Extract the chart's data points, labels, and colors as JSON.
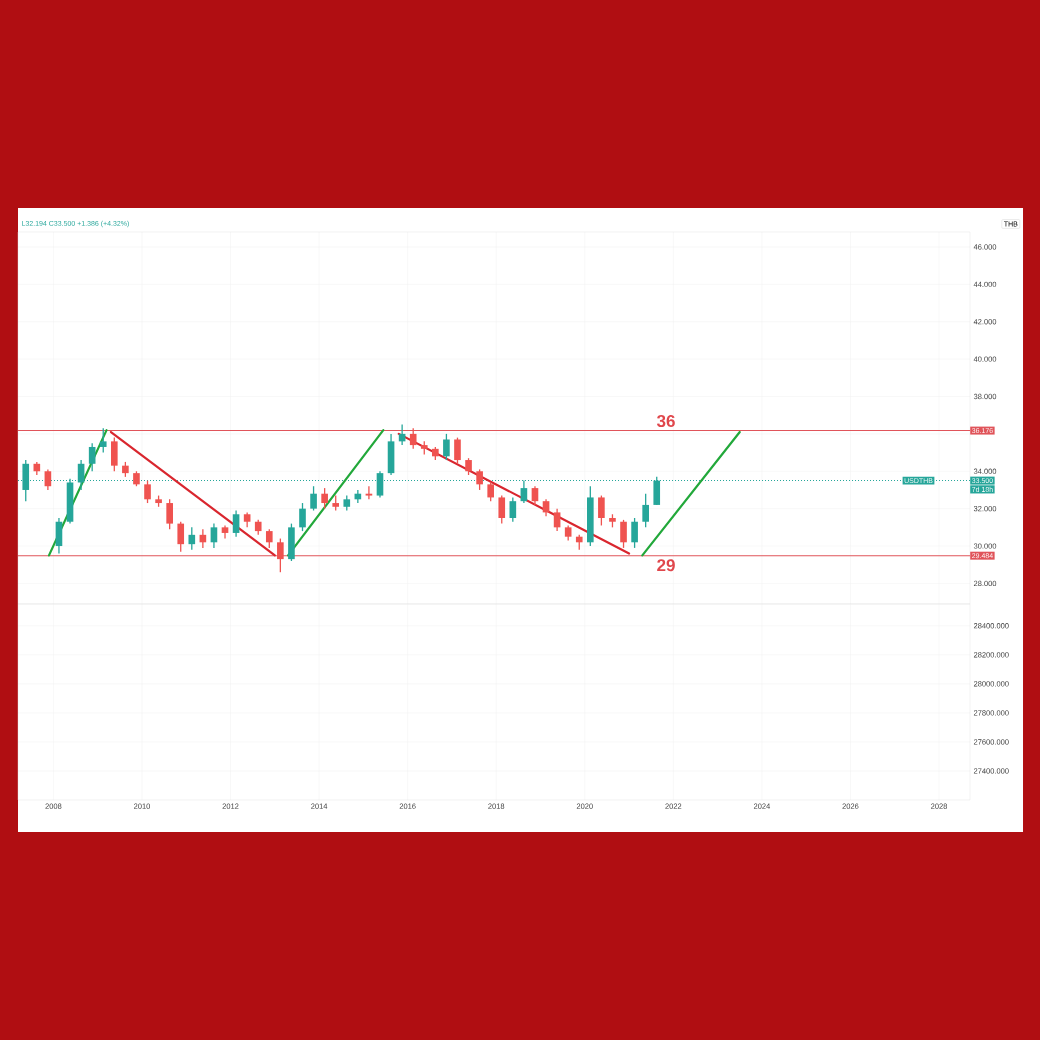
{
  "chart_data": [
    {
      "type": "candlestick",
      "x": [
        2007.375,
        2007.625,
        2007.875,
        2008.125,
        2008.375,
        2008.625,
        2008.875,
        2009.125,
        2009.375,
        2009.625,
        2009.875,
        2010.125,
        2010.375,
        2010.625,
        2010.875,
        2011.125,
        2011.375,
        2011.625,
        2011.875,
        2012.125,
        2012.375,
        2012.625,
        2012.875,
        2013.125,
        2013.375,
        2013.625,
        2013.875,
        2014.125,
        2014.375,
        2014.625,
        2014.875,
        2015.125,
        2015.375,
        2015.625,
        2015.875,
        2016.125,
        2016.375,
        2016.625,
        2016.875,
        2017.125,
        2017.375,
        2017.625,
        2017.875,
        2018.125,
        2018.375,
        2018.625,
        2018.875,
        2019.125,
        2019.375,
        2019.625,
        2019.875,
        2020.125,
        2020.375,
        2020.625,
        2020.875,
        2021.125,
        2021.375,
        2021.625
      ],
      "ohlc": [
        [
          33.0,
          34.6,
          32.4,
          34.4
        ],
        [
          34.4,
          34.5,
          33.8,
          34.0
        ],
        [
          34.0,
          34.1,
          33.0,
          33.2
        ],
        [
          30.0,
          31.5,
          29.6,
          31.3
        ],
        [
          31.3,
          33.6,
          31.2,
          33.4
        ],
        [
          33.4,
          34.6,
          33.0,
          34.4
        ],
        [
          34.4,
          35.5,
          34.0,
          35.3
        ],
        [
          35.3,
          36.3,
          35.0,
          35.6
        ],
        [
          35.6,
          35.8,
          34.0,
          34.3
        ],
        [
          34.3,
          34.5,
          33.7,
          33.9
        ],
        [
          33.9,
          34.0,
          33.2,
          33.3
        ],
        [
          33.3,
          33.5,
          32.3,
          32.5
        ],
        [
          32.5,
          32.7,
          32.1,
          32.3
        ],
        [
          32.3,
          32.5,
          30.9,
          31.2
        ],
        [
          31.2,
          31.3,
          29.7,
          30.1
        ],
        [
          30.1,
          31.0,
          29.8,
          30.6
        ],
        [
          30.6,
          30.9,
          29.9,
          30.2
        ],
        [
          30.2,
          31.2,
          29.9,
          31.0
        ],
        [
          31.0,
          31.1,
          30.4,
          30.7
        ],
        [
          30.7,
          31.9,
          30.5,
          31.7
        ],
        [
          31.7,
          31.8,
          31.0,
          31.3
        ],
        [
          31.3,
          31.4,
          30.6,
          30.8
        ],
        [
          30.8,
          30.9,
          29.9,
          30.2
        ],
        [
          30.2,
          30.4,
          28.6,
          29.3
        ],
        [
          29.3,
          31.2,
          29.2,
          31.0
        ],
        [
          31.0,
          32.3,
          30.8,
          32.0
        ],
        [
          32.0,
          33.2,
          31.9,
          32.8
        ],
        [
          32.8,
          33.1,
          32.0,
          32.3
        ],
        [
          32.3,
          32.7,
          31.9,
          32.1
        ],
        [
          32.1,
          32.7,
          31.9,
          32.5
        ],
        [
          32.5,
          33.0,
          32.3,
          32.8
        ],
        [
          32.8,
          33.2,
          32.5,
          32.7
        ],
        [
          32.7,
          34.0,
          32.6,
          33.9
        ],
        [
          33.9,
          36.0,
          33.8,
          35.6
        ],
        [
          35.6,
          36.5,
          35.4,
          36.0
        ],
        [
          36.0,
          36.3,
          35.2,
          35.4
        ],
        [
          35.4,
          35.6,
          34.9,
          35.2
        ],
        [
          35.2,
          35.3,
          34.6,
          34.8
        ],
        [
          34.8,
          36.0,
          34.6,
          35.7
        ],
        [
          35.7,
          35.8,
          34.4,
          34.6
        ],
        [
          34.6,
          34.7,
          33.8,
          34.0
        ],
        [
          34.0,
          34.1,
          33.0,
          33.3
        ],
        [
          33.3,
          33.4,
          32.4,
          32.6
        ],
        [
          32.6,
          32.7,
          31.2,
          31.5
        ],
        [
          31.5,
          32.6,
          31.3,
          32.4
        ],
        [
          32.4,
          33.5,
          32.3,
          33.1
        ],
        [
          33.1,
          33.2,
          32.2,
          32.4
        ],
        [
          32.4,
          32.5,
          31.6,
          31.8
        ],
        [
          31.8,
          32.0,
          30.8,
          31.0
        ],
        [
          31.0,
          31.1,
          30.3,
          30.5
        ],
        [
          30.5,
          30.6,
          29.8,
          30.2
        ],
        [
          30.2,
          33.2,
          30.0,
          32.6
        ],
        [
          32.6,
          32.7,
          31.1,
          31.5
        ],
        [
          31.5,
          31.7,
          31.0,
          31.3
        ],
        [
          31.3,
          31.4,
          29.9,
          30.2
        ],
        [
          30.2,
          31.5,
          29.9,
          31.3
        ],
        [
          31.3,
          32.8,
          31.0,
          32.2
        ],
        [
          32.2,
          33.7,
          32.194,
          33.5
        ]
      ],
      "series": [
        {
          "type": "line",
          "color": "#22a83a",
          "x": [
            2007.9,
            2009.2
          ],
          "values": [
            29.5,
            36.2
          ]
        },
        {
          "type": "line",
          "color": "#d9262e",
          "x": [
            2009.3,
            2013.0
          ],
          "values": [
            36.1,
            29.5
          ]
        },
        {
          "type": "line",
          "color": "#22a83a",
          "x": [
            2013.3,
            2015.45
          ],
          "values": [
            29.5,
            36.2
          ]
        },
        {
          "type": "line",
          "color": "#d9262e",
          "x": [
            2015.8,
            2021.0
          ],
          "values": [
            36.0,
            29.6
          ]
        },
        {
          "type": "line",
          "color": "#22a83a",
          "x": [
            2021.3,
            2023.5
          ],
          "values": [
            29.5,
            36.1
          ]
        }
      ],
      "ref_lines": [
        {
          "axis": "y",
          "value": 36.176,
          "label": "36.176",
          "color": "#e0545a"
        },
        {
          "axis": "y",
          "value": 29.484,
          "label": "29.484",
          "color": "#e0545a"
        },
        {
          "axis": "y",
          "value": 33.5,
          "label": "33.500",
          "color": "#26a69a",
          "line_style": "dotted"
        }
      ],
      "annotations": [
        {
          "text": "USDTHB",
          "x": 2027.9,
          "y": 33.5
        },
        "L32.194 C33.500 +1.386 (+4.32%)",
        "THB",
        "7d 18h",
        "36",
        "29"
      ],
      "xlim": [
        2007.2,
        2028.7
      ],
      "ylim": [
        26.9,
        46.8
      ],
      "xticks": [
        2008,
        2010,
        2012,
        2014,
        2016,
        2018,
        2020,
        2022,
        2024,
        2026,
        2028
      ],
      "yticks": [
        {
          "value": 28,
          "label": "28.000"
        },
        {
          "value": 30,
          "label": "30.000"
        },
        {
          "value": 32,
          "label": "32.000"
        },
        {
          "value": 34,
          "label": "34.000"
        },
        {
          "value": 36,
          "label": null
        },
        {
          "value": 38,
          "label": "38.000"
        },
        {
          "value": 40,
          "label": "40.000"
        },
        {
          "value": 42,
          "label": "42.000"
        },
        {
          "value": 44,
          "label": "44.000"
        },
        {
          "value": 46,
          "label": "46.000"
        }
      ],
      "tick_labels": "y",
      "grid": true
    },
    {
      "type": "line",
      "xlim": [
        2007.2,
        2028.7
      ],
      "ylim": [
        27200,
        28550
      ],
      "xticks": [
        2008,
        2010,
        2012,
        2014,
        2016,
        2018,
        2020,
        2022,
        2024,
        2026,
        2028
      ],
      "yticks": [
        {
          "value": 27400,
          "label": "27400.000"
        },
        {
          "value": 27600,
          "label": "27600.000"
        },
        {
          "value": 27800,
          "label": "27800.000"
        },
        {
          "value": 28000,
          "label": "28000.000"
        },
        {
          "value": 28200,
          "label": "28200.000"
        },
        {
          "value": 28400,
          "label": "28400.000"
        }
      ],
      "grid": true
    }
  ]
}
